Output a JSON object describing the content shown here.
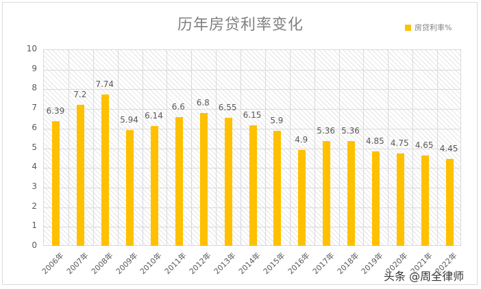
{
  "chart_data": {
    "type": "bar",
    "title": "历年房贷利率变化",
    "xlabel": "",
    "ylabel": "",
    "ylim": [
      0,
      10
    ],
    "yticks": [
      0,
      1,
      2,
      3,
      4,
      5,
      6,
      7,
      8,
      9,
      10
    ],
    "grid": true,
    "legend_position": "top-right",
    "categories": [
      "2006年",
      "2007年",
      "2008年",
      "2009年",
      "2010年",
      "2011年",
      "2012年",
      "2013年",
      "2014年",
      "2015年",
      "2016年",
      "2017年",
      "2018年",
      "2019年",
      "2020年",
      "2021年",
      "2022年"
    ],
    "series": [
      {
        "name": "房贷利率%",
        "color": "#ffc000",
        "values": [
          6.39,
          7.2,
          7.74,
          5.94,
          6.14,
          6.6,
          6.8,
          6.55,
          6.15,
          5.9,
          4.9,
          5.36,
          5.36,
          4.85,
          4.75,
          4.65,
          4.45
        ]
      }
    ],
    "data_labels": [
      "6.39",
      "7.2",
      "7.74",
      "5.94",
      "6.14",
      "6.6",
      "6.8",
      "6.55",
      "6.15",
      "5.9",
      "4.9",
      "5.36",
      "5.36",
      "4.85",
      "4.75",
      "4.65",
      "4.45"
    ]
  },
  "chart": {
    "title": "历年房贷利率变化",
    "legend_label": "房贷利率%"
  },
  "watermark": "头条 @周全律师"
}
